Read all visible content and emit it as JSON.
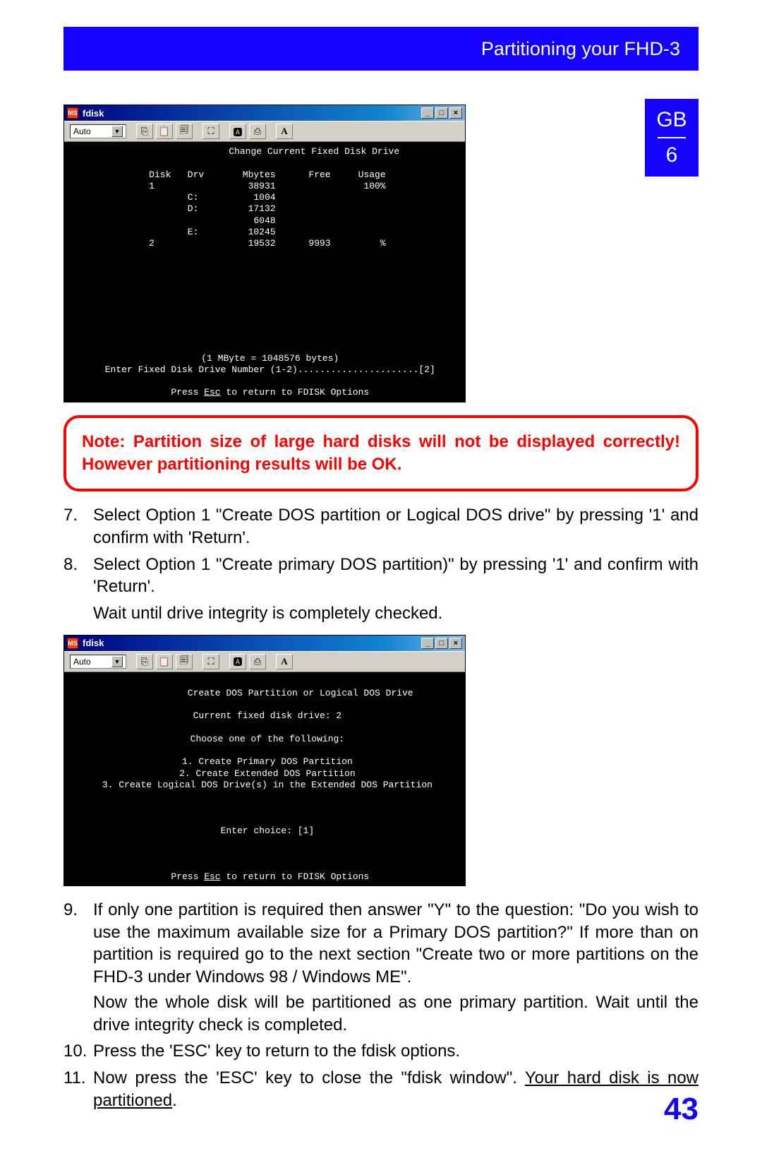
{
  "header": {
    "title": "Partitioning your FHD-3"
  },
  "side_tab": {
    "lang": "GB",
    "chapter": "6"
  },
  "page_number": "43",
  "note": {
    "text": "Note: Partition size of large hard disks will not be displayed correctly! However partitioning results will be OK."
  },
  "steps_a": [
    {
      "n": "7.",
      "text": "Select Option 1 \"Create DOS partition or Logical DOS drive\" by pressing '1' and confirm with 'Return'."
    },
    {
      "n": "8.",
      "text": "Select Option 1 \"Create primary DOS partition)\" by pressing '1' and confirm with 'Return'."
    }
  ],
  "wait_line": "Wait until drive integrity is completely checked.",
  "steps_b": [
    {
      "n": "9.",
      "text": "If only one partition is required then answer \"Y\" to the question: \"Do you wish to use the maximum available size for a Primary DOS partition?\" If more than on partition is required go to the next section \"Create two or more partitions on the FHD-3 under Windows 98 / Windows ME\".",
      "extra": "Now the whole disk will be partitioned as one primary partition. Wait until the drive integrity check is completed."
    },
    {
      "n": "10.",
      "text": "Press the 'ESC' key to return to the fdisk options."
    },
    {
      "n": "11.",
      "text_pre": "Now press the 'ESC' key to close the \"fdisk window\". ",
      "text_ul": "Your hard disk is now partitioned",
      "text_post": "."
    }
  ],
  "fdisk_common": {
    "title": "fdisk",
    "icon_text": "MS",
    "win_buttons": [
      "_",
      "□",
      "×"
    ],
    "combo_label": "Auto",
    "toolbar_icons": [
      "⎘",
      "📋",
      "🗐",
      "⛶",
      "🅰",
      "⎙",
      "A"
    ],
    "footer_esc": "Press Esc to return to FDISK Options",
    "colors": {
      "titlebar_start": "#000080",
      "titlebar_end": "#7ab7e8",
      "chrome": "#d4d0c8",
      "term_bg": "#000000",
      "term_fg": "#ffffff"
    }
  },
  "fdisk1": {
    "heading": "Change Current Fixed Disk Drive",
    "columns": [
      "Disk",
      "Drv",
      "Mbytes",
      "Free",
      "Usage"
    ],
    "rows": [
      {
        "disk": "1",
        "drv": "",
        "mbytes": "38931",
        "free": "",
        "usage": "100%"
      },
      {
        "disk": "",
        "drv": "C:",
        "mbytes": "1004",
        "free": "",
        "usage": ""
      },
      {
        "disk": "",
        "drv": "D:",
        "mbytes": "17132",
        "free": "",
        "usage": ""
      },
      {
        "disk": "",
        "drv": "",
        "mbytes": "6048",
        "free": "",
        "usage": ""
      },
      {
        "disk": "",
        "drv": "E:",
        "mbytes": "10245",
        "free": "",
        "usage": ""
      },
      {
        "disk": "2",
        "drv": "",
        "mbytes": "19532",
        "free": "9993",
        "usage": "%"
      }
    ],
    "note_line": "(1 MByte = 1048576 bytes)",
    "prompt": "Enter Fixed Disk Drive Number (1-2)......................[2]"
  },
  "fdisk2": {
    "heading": "Create DOS Partition or Logical DOS Drive",
    "current": "Current fixed disk drive: 2",
    "choose": "Choose one of the following:",
    "options": [
      "1. Create Primary DOS Partition",
      "2. Create Extended DOS Partition",
      "3. Create Logical DOS Drive(s) in the Extended DOS Partition"
    ],
    "enter": "Enter choice: [1]"
  }
}
